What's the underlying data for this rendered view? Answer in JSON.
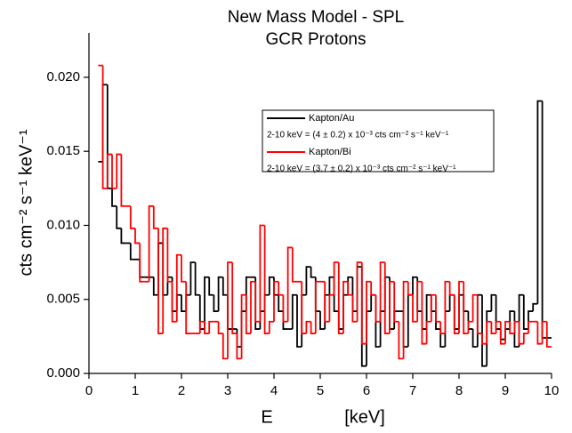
{
  "chart_data": {
    "type": "histogram",
    "title": "New Mass Model - SPL",
    "subtitle": "GCR Protons",
    "x_label": "E",
    "x_unit_label": "[keV]",
    "y_label": "cts cm⁻² s⁻¹ keV⁻¹",
    "bins": [
      0.2,
      0.3,
      0.4,
      0.5,
      0.6,
      0.7,
      0.8,
      0.9,
      1.0,
      1.1,
      1.2,
      1.3,
      1.4,
      1.5,
      1.6,
      1.7,
      1.8,
      1.9,
      2.0,
      2.1,
      2.2,
      2.3,
      2.4,
      2.5,
      2.6,
      2.7,
      2.8,
      2.9,
      3.0,
      3.1,
      3.2,
      3.3,
      3.4,
      3.5,
      3.6,
      3.7,
      3.8,
      3.9,
      4.0,
      4.1,
      4.2,
      4.3,
      4.4,
      4.5,
      4.6,
      4.7,
      4.8,
      4.9,
      5.0,
      5.1,
      5.2,
      5.3,
      5.4,
      5.5,
      5.6,
      5.7,
      5.8,
      5.9,
      6.0,
      6.1,
      6.2,
      6.3,
      6.4,
      6.5,
      6.6,
      6.7,
      6.8,
      6.9,
      7.0,
      7.1,
      7.2,
      7.3,
      7.4,
      7.5,
      7.6,
      7.7,
      7.8,
      7.9,
      8.0,
      8.1,
      8.2,
      8.3,
      8.4,
      8.5,
      8.6,
      8.7,
      8.8,
      8.9,
      9.0,
      9.1,
      9.2,
      9.3,
      9.4,
      9.5,
      9.6,
      9.7,
      9.8,
      9.9,
      10.0
    ],
    "series": [
      {
        "name": "Kapton/Au",
        "note": "2-10 keV = (4 ± 0.2) x 10⁻³ cts cm⁻² s⁻¹ keV⁻¹",
        "color": "#000000",
        "values": [
          0.0143,
          0.0195,
          0.0125,
          0.0113,
          0.0098,
          0.0088,
          0.0088,
          0.0077,
          0.0077,
          0.0065,
          0.0065,
          0.0065,
          0.0053,
          0.0088,
          0.0053,
          0.0065,
          0.0042,
          0.0053,
          0.0042,
          0.0053,
          0.0075,
          0.0053,
          0.003,
          0.0065,
          0.0053,
          0.0042,
          0.0065,
          0.0053,
          0.003,
          0.003,
          0.0018,
          0.0042,
          0.0065,
          0.0065,
          0.003,
          0.0042,
          0.0053,
          0.0065,
          0.0053,
          0.0042,
          0.003,
          0.003,
          0.0053,
          0.0018,
          0.0053,
          0.0072,
          0.0065,
          0.0042,
          0.003,
          0.0053,
          0.0065,
          0.0042,
          0.003,
          0.0053,
          0.0065,
          0.0042,
          0.0072,
          0.0005,
          0.0042,
          0.0053,
          0.0018,
          0.0042,
          0.0065,
          0.003,
          0.0042,
          0.0042,
          0.0018,
          0.0053,
          0.0065,
          0.0042,
          0.003,
          0.0053,
          0.0042,
          0.003,
          0.0018,
          0.0042,
          0.0053,
          0.003,
          0.0053,
          0.0042,
          0.003,
          0.0018,
          0.0053,
          0.0005,
          0.0042,
          0.0053,
          0.003,
          0.0023,
          0.003,
          0.0042,
          0.0018,
          0.0053,
          0.003,
          0.0042,
          0.0047,
          0.0184,
          0.0024,
          0.0024
        ]
      },
      {
        "name": "Kapton/Bi",
        "note": "2-10 keV = (3.7 ± 0.2) x 10⁻³ cts cm⁻² s⁻¹ keV⁻¹",
        "color": "#ff0000",
        "values": [
          0.0208,
          0.0125,
          0.0148,
          0.0125,
          0.0148,
          0.0113,
          0.0113,
          0.0098,
          0.0088,
          0.0062,
          0.0062,
          0.0113,
          0.0098,
          0.0027,
          0.0098,
          0.0062,
          0.0035,
          0.008,
          0.0062,
          0.0027,
          0.0027,
          0.0027,
          0.0035,
          0.0027,
          0.0035,
          0.0035,
          0.0027,
          0.001,
          0.0075,
          0.0027,
          0.001,
          0.0053,
          0.0027,
          0.0062,
          0.0035,
          0.01,
          0.0027,
          0.0035,
          0.0062,
          0.0053,
          0.0035,
          0.0085,
          0.0062,
          0.0062,
          0.0027,
          0.0035,
          0.0027,
          0.0062,
          0.0062,
          0.0035,
          0.0053,
          0.0075,
          0.0027,
          0.0062,
          0.0053,
          0.0035,
          0.0075,
          0.002,
          0.0062,
          0.0053,
          0.0035,
          0.0075,
          0.0027,
          0.0062,
          0.0035,
          0.001,
          0.0062,
          0.0053,
          0.0035,
          0.0062,
          0.002,
          0.0035,
          0.0053,
          0.0035,
          0.0027,
          0.0062,
          0.0053,
          0.0027,
          0.0062,
          0.0027,
          0.0035,
          0.0053,
          0.0027,
          0.002,
          0.0035,
          0.0027,
          0.0035,
          0.002,
          0.0035,
          0.0027,
          0.0035,
          0.002,
          0.0027,
          0.0035,
          0.0035,
          0.002,
          0.0035,
          0.0018
        ]
      }
    ],
    "xlim": [
      0,
      10
    ],
    "xticks": [
      0,
      1,
      2,
      3,
      4,
      5,
      6,
      7,
      8,
      9,
      10
    ],
    "ylim": [
      0,
      0.023
    ],
    "yticks": [
      {
        "value": 0,
        "label": "0.000"
      },
      {
        "value": 0.005,
        "label": "0.005"
      },
      {
        "value": 0.01,
        "label": "0.010"
      },
      {
        "value": 0.015,
        "label": "0.015"
      },
      {
        "value": 0.02,
        "label": "0.020"
      }
    ],
    "grid": false
  }
}
